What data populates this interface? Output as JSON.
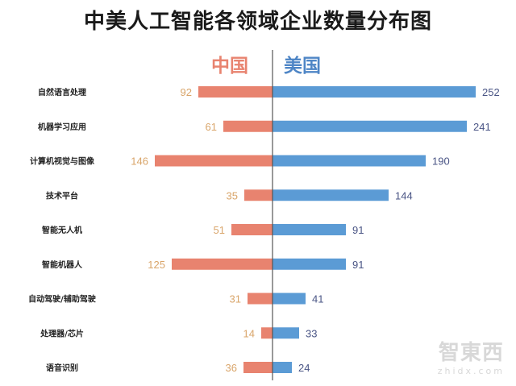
{
  "chart_data": {
    "type": "bar",
    "orientation": "horizontal-diverging",
    "title": "中美人工智能各领域企业数量分布图",
    "categories": [
      "自然语言处理",
      "机器学习应用",
      "计算机视觉与图像",
      "技术平台",
      "智能无人机",
      "智能机器人",
      "自动驾驶/辅助驾驶",
      "处理器/芯片",
      "语音识别"
    ],
    "series": [
      {
        "name": "中国",
        "direction": "left",
        "color": "#e8836f",
        "label_color": "#d9a56a",
        "values": [
          92,
          61,
          146,
          35,
          51,
          125,
          31,
          14,
          36
        ]
      },
      {
        "name": "美国",
        "direction": "right",
        "color": "#5b9bd5",
        "label_color": "#4a5585",
        "values": [
          252,
          241,
          190,
          144,
          91,
          91,
          41,
          33,
          24
        ]
      }
    ],
    "grid": false,
    "legend": "top-center"
  },
  "watermark": {
    "logo": "智东西",
    "site": "zhidx.com"
  }
}
